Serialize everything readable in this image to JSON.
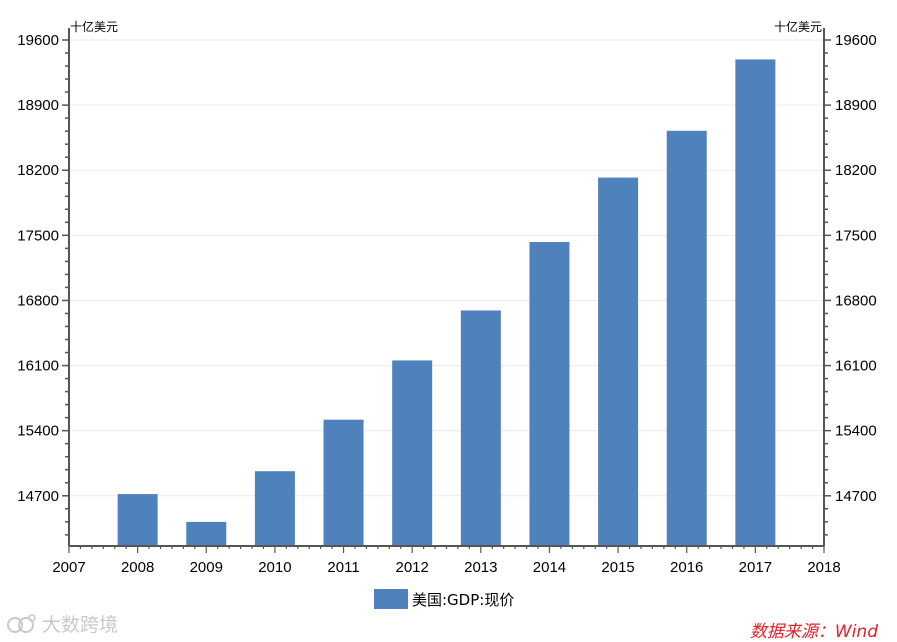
{
  "chart_data": {
    "type": "bar",
    "unit_left": "十亿美元",
    "unit_right": "十亿美元",
    "categories": [
      "2008",
      "2009",
      "2010",
      "2011",
      "2012",
      "2013",
      "2014",
      "2015",
      "2016",
      "2017"
    ],
    "x_ticks": [
      "2007",
      "2008",
      "2009",
      "2010",
      "2011",
      "2012",
      "2013",
      "2014",
      "2015",
      "2016",
      "2017",
      "2018"
    ],
    "series": [
      {
        "name": "美国:GDP:现价",
        "values": [
          14718,
          14419,
          14964,
          15518,
          16155,
          16692,
          17428,
          18121,
          18624,
          19391
        ]
      }
    ],
    "y_ticks": [
      14700,
      15400,
      16100,
      16800,
      17500,
      18200,
      18900,
      19600
    ],
    "ylim": [
      14160,
      19600
    ],
    "grid": true,
    "legend_position": "bottom",
    "color": "#4f81bd"
  },
  "source": "数据来源：Wind",
  "watermark": "大数跨境"
}
